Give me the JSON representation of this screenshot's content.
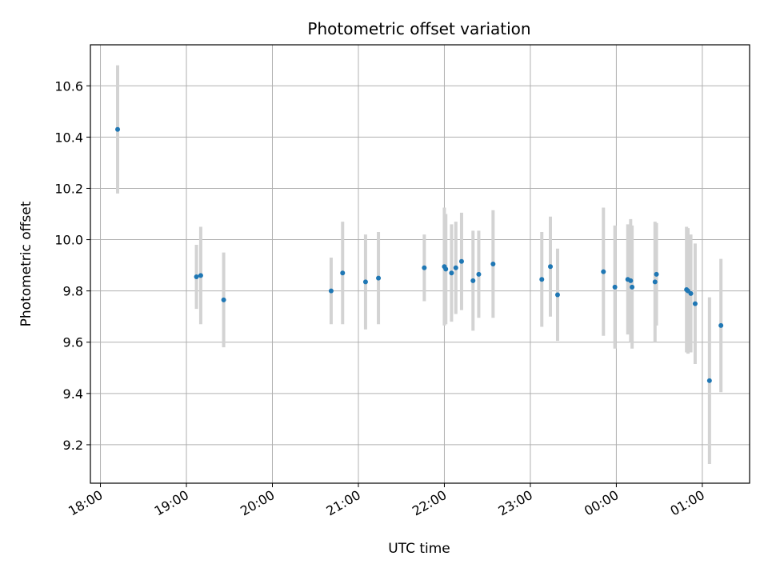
{
  "chart_data": {
    "type": "scatter",
    "title": "Photometric offset variation",
    "xlabel": "UTC time",
    "ylabel": "Photometric offset",
    "grid": true,
    "x_axis": {
      "kind": "time",
      "range": [
        "17:53",
        "01:33"
      ],
      "ticks": [
        {
          "time": "18:00",
          "label": "18:00"
        },
        {
          "time": "19:00",
          "label": "19:00"
        },
        {
          "time": "20:00",
          "label": "20:00"
        },
        {
          "time": "21:00",
          "label": "21:00"
        },
        {
          "time": "22:00",
          "label": "22:00"
        },
        {
          "time": "23:00",
          "label": "23:00"
        },
        {
          "time": "00:00",
          "label": "00:00"
        },
        {
          "time": "01:00",
          "label": "01:00"
        }
      ]
    },
    "y_axis": {
      "range": [
        9.05,
        10.76
      ],
      "ticks": [
        {
          "value": 9.2,
          "label": "9.2"
        },
        {
          "value": 9.4,
          "label": "9.4"
        },
        {
          "value": 9.6,
          "label": "9.6"
        },
        {
          "value": 9.8,
          "label": "9.8"
        },
        {
          "value": 10.0,
          "label": "10.0"
        },
        {
          "value": 10.2,
          "label": "10.2"
        },
        {
          "value": 10.4,
          "label": "10.4"
        },
        {
          "value": 10.6,
          "label": "10.6"
        }
      ]
    },
    "point_color": "#1f77b4",
    "errorbar_color": "#d3d3d3",
    "points": [
      {
        "time": "18:12",
        "y": 10.43,
        "err": 0.25
      },
      {
        "time": "19:07",
        "y": 9.855,
        "err": 0.125
      },
      {
        "time": "19:10",
        "y": 9.86,
        "err": 0.19
      },
      {
        "time": "19:26",
        "y": 9.765,
        "err": 0.185
      },
      {
        "time": "20:41",
        "y": 9.8,
        "err": 0.13
      },
      {
        "time": "20:49",
        "y": 9.87,
        "err": 0.2
      },
      {
        "time": "21:05",
        "y": 9.835,
        "err": 0.185
      },
      {
        "time": "21:14",
        "y": 9.85,
        "err": 0.18
      },
      {
        "time": "21:46",
        "y": 9.89,
        "err": 0.13
      },
      {
        "time": "22:00",
        "y": 9.895,
        "err": 0.23
      },
      {
        "time": "22:01",
        "y": 9.885,
        "err": 0.215
      },
      {
        "time": "22:05",
        "y": 9.87,
        "err": 0.19
      },
      {
        "time": "22:08",
        "y": 9.89,
        "err": 0.18
      },
      {
        "time": "22:12",
        "y": 9.915,
        "err": 0.19
      },
      {
        "time": "22:20",
        "y": 9.84,
        "err": 0.195
      },
      {
        "time": "22:24",
        "y": 9.865,
        "err": 0.17
      },
      {
        "time": "22:34",
        "y": 9.905,
        "err": 0.21
      },
      {
        "time": "23:08",
        "y": 9.845,
        "err": 0.185
      },
      {
        "time": "23:14",
        "y": 9.895,
        "err": 0.195
      },
      {
        "time": "23:19",
        "y": 9.785,
        "err": 0.18
      },
      {
        "time": "23:51",
        "y": 9.875,
        "err": 0.25
      },
      {
        "time": "23:59",
        "y": 9.815,
        "err": 0.24
      },
      {
        "time": "00:08",
        "y": 9.845,
        "err": 0.215
      },
      {
        "time": "00:10",
        "y": 9.84,
        "err": 0.24
      },
      {
        "time": "00:11",
        "y": 9.815,
        "err": 0.24
      },
      {
        "time": "00:27",
        "y": 9.835,
        "err": 0.235
      },
      {
        "time": "00:28",
        "y": 9.865,
        "err": 0.2
      },
      {
        "time": "00:49",
        "y": 9.805,
        "err": 0.245
      },
      {
        "time": "00:50",
        "y": 9.8,
        "err": 0.245
      },
      {
        "time": "00:52",
        "y": 9.79,
        "err": 0.23
      },
      {
        "time": "00:55",
        "y": 9.75,
        "err": 0.235
      },
      {
        "time": "01:05",
        "y": 9.45,
        "err": 0.325
      },
      {
        "time": "01:13",
        "y": 9.665,
        "err": 0.26
      }
    ]
  }
}
